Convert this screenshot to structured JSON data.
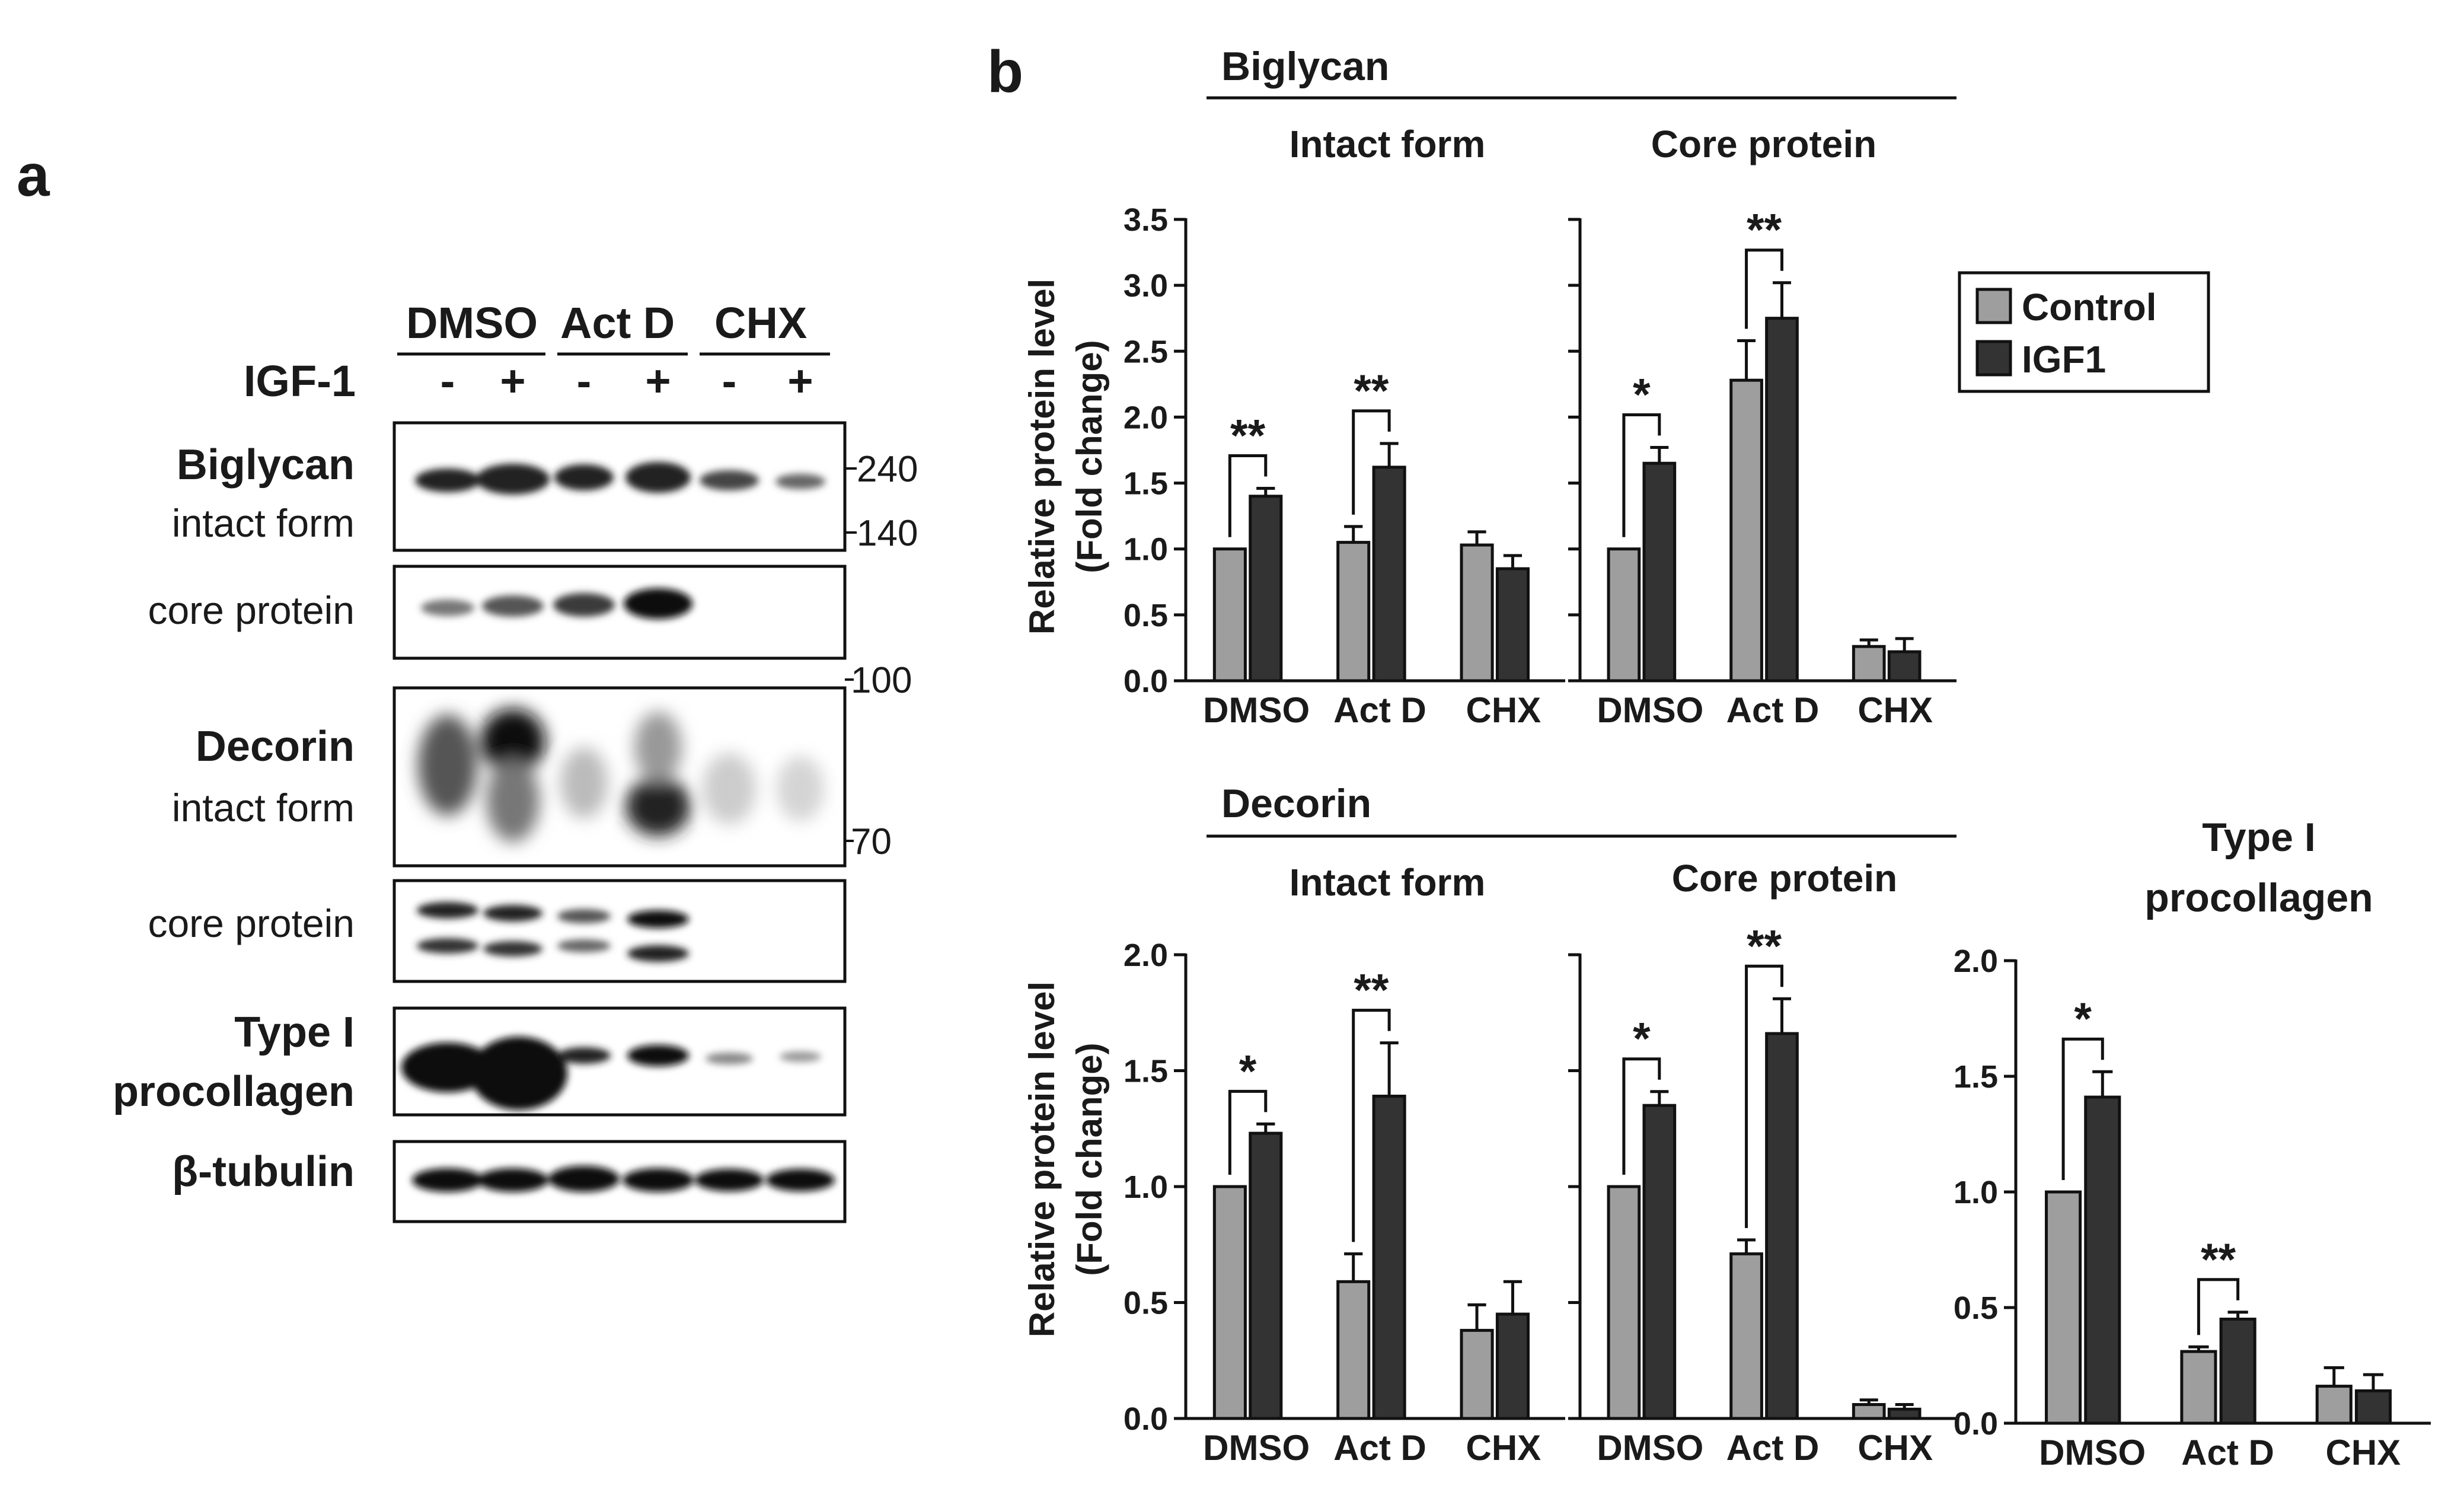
{
  "panel_a": {
    "label": "a",
    "groups": [
      "DMSO",
      "Act D",
      "CHX"
    ],
    "igf_label": "IGF-1",
    "igf_signs": [
      "-",
      "+",
      "-",
      "+",
      "-",
      "+"
    ],
    "rows": [
      {
        "bold": "Biglycan",
        "normal": "intact form"
      },
      {
        "bold": "",
        "normal": "core protein"
      },
      {
        "bold": "Decorin",
        "normal": "intact form"
      },
      {
        "bold": "",
        "normal": "core protein"
      },
      {
        "bold": "Type I",
        "bold2": "procollagen"
      },
      {
        "bold": "β-tubulin"
      }
    ],
    "mw_markers": [
      "240",
      "140",
      "100",
      "70"
    ]
  },
  "panel_b": {
    "label": "b"
  },
  "legend": {
    "items": [
      {
        "name": "Control",
        "color": "#9e9e9e"
      },
      {
        "name": "IGF1",
        "color": "#333333"
      }
    ]
  },
  "chart_data": [
    {
      "type": "bar",
      "group": "Biglycan",
      "subtitle": "Intact form",
      "ylabel": "Relative protein level (Fold change)",
      "ylim": [
        0,
        3.5
      ],
      "yticks": [
        "0.0",
        "0.5",
        "1.0",
        "1.5",
        "2.0",
        "2.5",
        "3.0",
        "3.5"
      ],
      "categories": [
        "DMSO",
        "Act D",
        "CHX"
      ],
      "series": [
        {
          "name": "Control",
          "values": [
            1.0,
            1.05,
            1.03
          ],
          "errors": [
            0.0,
            0.12,
            0.1
          ]
        },
        {
          "name": "IGF1",
          "values": [
            1.4,
            1.62,
            0.85
          ],
          "errors": [
            0.06,
            0.18,
            0.1
          ]
        }
      ],
      "significance": [
        "**",
        "**",
        ""
      ]
    },
    {
      "type": "bar",
      "group": "Biglycan",
      "subtitle": "Core protein",
      "ylim": [
        0,
        3.5
      ],
      "categories": [
        "DMSO",
        "Act D",
        "CHX"
      ],
      "series": [
        {
          "name": "Control",
          "values": [
            1.0,
            2.28,
            0.26
          ],
          "errors": [
            0.0,
            0.3,
            0.05
          ]
        },
        {
          "name": "IGF1",
          "values": [
            1.65,
            2.75,
            0.22
          ],
          "errors": [
            0.12,
            0.27,
            0.1
          ]
        }
      ],
      "significance": [
        "*",
        "**",
        ""
      ]
    },
    {
      "type": "bar",
      "group": "Decorin",
      "subtitle": "Intact form",
      "ylabel": "Relative protein level (Fold change)",
      "ylim": [
        0,
        2.0
      ],
      "yticks": [
        "0.0",
        "0.5",
        "1.0",
        "1.5",
        "2.0"
      ],
      "categories": [
        "DMSO",
        "Act D",
        "CHX"
      ],
      "series": [
        {
          "name": "Control",
          "values": [
            1.0,
            0.59,
            0.38
          ],
          "errors": [
            0.0,
            0.12,
            0.11
          ]
        },
        {
          "name": "IGF1",
          "values": [
            1.23,
            1.39,
            0.45
          ],
          "errors": [
            0.04,
            0.23,
            0.14
          ]
        }
      ],
      "significance": [
        "*",
        "**",
        ""
      ]
    },
    {
      "type": "bar",
      "group": "Decorin",
      "subtitle": "Core protein",
      "ylim": [
        0,
        2.0
      ],
      "categories": [
        "DMSO",
        "Act D",
        "CHX"
      ],
      "series": [
        {
          "name": "Control",
          "values": [
            1.0,
            0.71,
            0.06
          ],
          "errors": [
            0.0,
            0.06,
            0.02
          ]
        },
        {
          "name": "IGF1",
          "values": [
            1.35,
            1.66,
            0.04
          ],
          "errors": [
            0.06,
            0.15,
            0.02
          ]
        }
      ],
      "significance": [
        "*",
        "**",
        ""
      ]
    },
    {
      "type": "bar",
      "title": "Type I procollagen",
      "ylim": [
        0,
        2.0
      ],
      "yticks": [
        "0.0",
        "0.5",
        "1.0",
        "1.5",
        "2.0"
      ],
      "categories": [
        "DMSO",
        "Act D",
        "CHX"
      ],
      "series": [
        {
          "name": "Control",
          "values": [
            1.0,
            0.31,
            0.16
          ],
          "errors": [
            0.0,
            0.02,
            0.08
          ]
        },
        {
          "name": "IGF1",
          "values": [
            1.41,
            0.45,
            0.14
          ],
          "errors": [
            0.11,
            0.03,
            0.07
          ]
        }
      ],
      "significance": [
        "*",
        "**",
        ""
      ]
    }
  ]
}
